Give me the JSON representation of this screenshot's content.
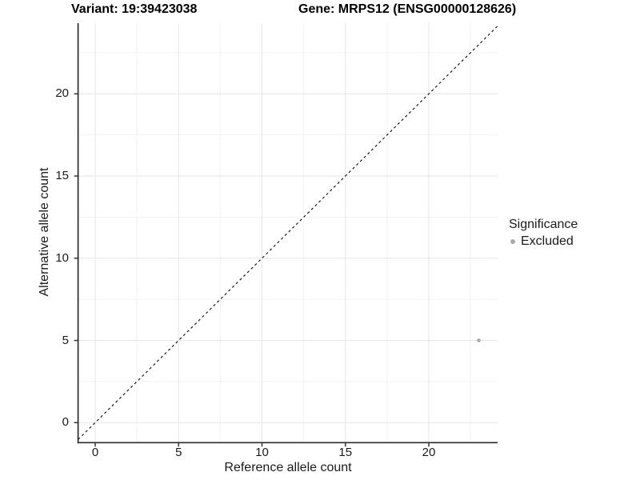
{
  "figure": {
    "background": "#ffffff",
    "title_left": "Variant: 19:39423038",
    "title_right": "Gene: MRPS12 (ENSG00000128626)"
  },
  "chart_data": {
    "type": "scatter",
    "xlabel": "Reference allele count",
    "ylabel": "Alternative allele count",
    "x_ticks": [
      0,
      5,
      10,
      15,
      20
    ],
    "y_ticks": [
      0,
      5,
      10,
      15,
      20
    ],
    "minor_grid_step": 2.5,
    "xlim": [
      -1.1,
      24.1
    ],
    "ylim": [
      -1.2,
      24.3
    ],
    "grid": "major+minor",
    "reference_line": {
      "equation": "y = x",
      "style": "dashed",
      "color": "#1a1a1a"
    },
    "series": [
      {
        "name": "Excluded",
        "color": "#a9a9a9",
        "points": [
          [
            23,
            5
          ]
        ]
      }
    ],
    "legend": {
      "title": "Significance",
      "position": "right",
      "items": [
        {
          "label": "Excluded",
          "color": "#a9a9a9"
        }
      ]
    }
  },
  "colors": {
    "grid_major": "#e8e8e8",
    "grid_minor": "#f1f1f1",
    "axis": "#2a2a2a",
    "tick_label": "#1a1a1a",
    "point": "#a9a9a9"
  }
}
